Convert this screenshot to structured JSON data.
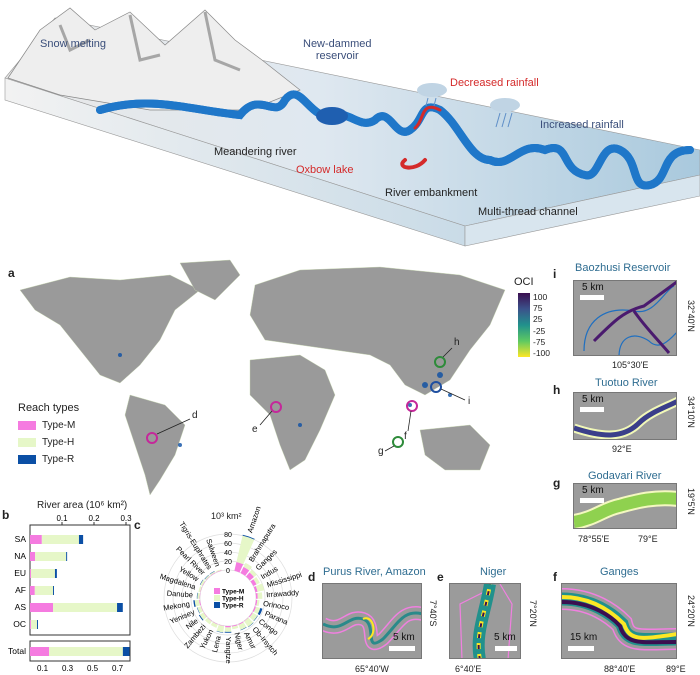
{
  "diagram": {
    "labels": {
      "snow": "Snow melting",
      "reservoir": "New-dammed\nreservoir",
      "decreased": "Decreased rainfall",
      "increased": "Increased rainfall",
      "meandering": "Meandering river",
      "oxbow": "Oxbow lake",
      "embankment": "River embankment",
      "multithread": "Multi-thread channel"
    },
    "colors": {
      "river": "#222222",
      "blue": "#1f77c9",
      "red": "#d42a2a"
    }
  },
  "panel_a": {
    "label": "a",
    "legend_title": "Reach types",
    "types": [
      {
        "name": "Type-M",
        "color": "#f57be0"
      },
      {
        "name": "Type-H",
        "color": "#e6f7c8"
      },
      {
        "name": "Type-R",
        "color": "#0b4fa5"
      }
    ],
    "oci": {
      "title": "OCI",
      "ticks": [
        "100",
        "75",
        "25",
        "-25",
        "-75",
        "-100"
      ],
      "colormap": "viridis-reversed"
    },
    "markers": [
      "d",
      "e",
      "f",
      "g",
      "h",
      "i"
    ]
  },
  "panel_b": {
    "label": "b",
    "xlabel": "River area (10⁶ km²)",
    "top_ticks": [
      "0.1",
      "0.2",
      "0.3"
    ],
    "bottom_ticks": [
      "0.1",
      "0.3",
      "0.5",
      "0.7"
    ],
    "chart_data": {
      "type": "bar",
      "orientation": "horizontal",
      "stacked": true,
      "categories": [
        "SA",
        "NA",
        "EU",
        "AF",
        "AS",
        "OC"
      ],
      "series": [
        {
          "name": "Type-M",
          "values": [
            0.037,
            0.016,
            0.003,
            0.015,
            0.072,
            0.003
          ]
        },
        {
          "name": "Type-H",
          "values": [
            0.116,
            0.097,
            0.075,
            0.057,
            0.2,
            0.019
          ]
        },
        {
          "name": "Type-R",
          "values": [
            0.013,
            0.003,
            0.006,
            0.003,
            0.018,
            0.003
          ]
        }
      ],
      "xlim": [
        0,
        0.3
      ],
      "total": {
        "category": "Total",
        "values": [
          0.152,
          0.591,
          0.053
        ],
        "xlim": [
          0,
          0.8
        ]
      }
    }
  },
  "panel_c": {
    "label": "c",
    "unit": "10³ km²",
    "radial_ticks": [
      "0",
      "20",
      "40",
      "60",
      "80"
    ],
    "chart_data": {
      "type": "bar",
      "polar": true,
      "stacked": true,
      "categories": [
        "Amazon",
        "Brahmaputra",
        "Ganges",
        "Indus",
        "Mississippi",
        "Irrawaddy",
        "Orinoco",
        "Parana",
        "Congo",
        "Ob-Irsytch",
        "Amur",
        "Niger",
        "Yangtze",
        "Lena",
        "Yukon",
        "Zambezi",
        "Nile",
        "Yenisey",
        "Mekong",
        "Danube",
        "Magdalena",
        "Yellow",
        "Pearl River",
        "Tigris-Euphrates",
        "Salween"
      ],
      "series": [
        {
          "name": "Type-M",
          "values": [
            20,
            15,
            12,
            8,
            5,
            4,
            3,
            3,
            2,
            1,
            2,
            2,
            3,
            1,
            1,
            1,
            1,
            1,
            2,
            1,
            1,
            1,
            1,
            1,
            1
          ]
        },
        {
          "name": "Type-H",
          "values": [
            60,
            10,
            8,
            8,
            15,
            10,
            5,
            10,
            12,
            15,
            12,
            6,
            10,
            14,
            8,
            8,
            10,
            8,
            10,
            5,
            4,
            5,
            3,
            3,
            2
          ]
        },
        {
          "name": "Type-R",
          "values": [
            2,
            0,
            0,
            0,
            0,
            0,
            0,
            5,
            1,
            1,
            1,
            0,
            2,
            1,
            0,
            0,
            2,
            1,
            3,
            1,
            0,
            1,
            1,
            1,
            0
          ]
        }
      ],
      "rlim": [
        0,
        80
      ]
    }
  },
  "insets": {
    "i": {
      "label": "i",
      "title": "Baozhusi Reservoir",
      "scale": "5 km",
      "lon": "105°30'E",
      "lat": "32°40'N"
    },
    "h": {
      "label": "h",
      "title": "Tuotuo River",
      "scale": "5 km",
      "lon": "92°E",
      "lat": "34°10'N"
    },
    "g": {
      "label": "g",
      "title": "Godavari River",
      "scale": "5 km",
      "lon1": "78°55'E",
      "lon2": "79°E",
      "lat": "19°5'N"
    },
    "d": {
      "label": "d",
      "title": "Purus River, Amazon",
      "scale": "5 km",
      "lon": "65°40'W",
      "lat": "7°40'S"
    },
    "e": {
      "label": "e",
      "title": "Niger",
      "scale": "5 km",
      "lon": "6°40'E",
      "lat": "7°20'N"
    },
    "f": {
      "label": "f",
      "title": "Ganges",
      "scale": "15 km",
      "lon1": "88°40'E",
      "lon2": "89°E",
      "lat": "24°20'N"
    }
  }
}
